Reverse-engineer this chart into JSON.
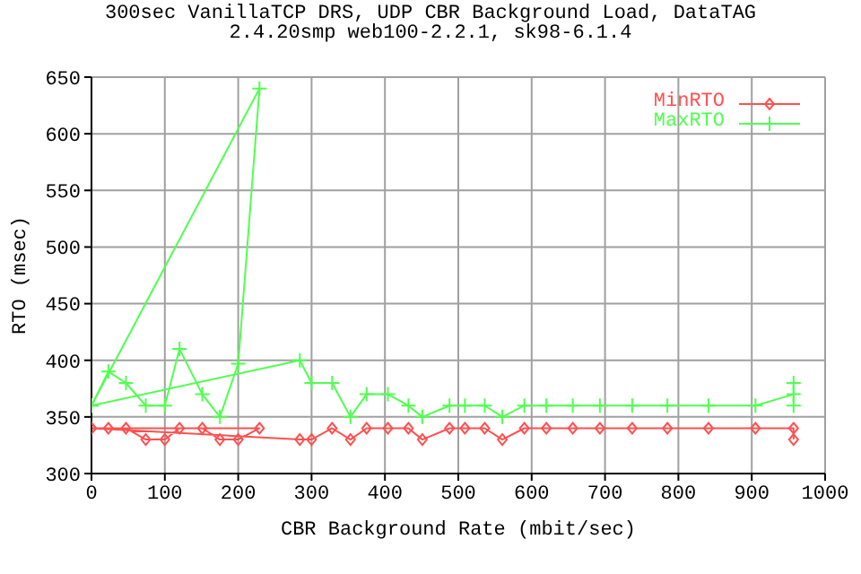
{
  "chart_data": {
    "type": "line",
    "title": "300sec VanillaTCP DRS, UDP CBR Background Load, DataTAG",
    "subtitle": "2.4.20smp web100-2.2.1, sk98-6.1.4",
    "xlabel": "CBR Background Rate (mbit/sec)",
    "ylabel": "RTO (msec)",
    "xlim": [
      0,
      1000
    ],
    "ylim": [
      300,
      650
    ],
    "xticks": [
      0,
      100,
      200,
      300,
      400,
      500,
      600,
      700,
      800,
      900,
      1000
    ],
    "yticks": [
      300,
      350,
      400,
      450,
      500,
      550,
      600,
      650
    ],
    "grid": true,
    "legend": "top right",
    "series": [
      {
        "name": "MinRTO",
        "color": "#ff5050",
        "marker": "diamond",
        "x": [
          0,
          23,
          47,
          74,
          100,
          120,
          151,
          175,
          200,
          229,
          0,
          284,
          300,
          328,
          353,
          375,
          404,
          432,
          451,
          488,
          509,
          536,
          560,
          590,
          620,
          656,
          693,
          737,
          785,
          841,
          905,
          957,
          957
        ],
        "values": [
          340,
          340,
          340,
          330,
          330,
          340,
          340,
          330,
          330,
          340,
          340,
          330,
          330,
          340,
          330,
          340,
          340,
          340,
          330,
          340,
          340,
          340,
          330,
          340,
          340,
          340,
          340,
          340,
          340,
          340,
          340,
          340,
          330
        ]
      },
      {
        "name": "MaxRTO",
        "color": "#50ff50",
        "marker": "cross",
        "x": [
          0,
          23,
          47,
          74,
          100,
          120,
          151,
          175,
          200,
          229,
          0,
          284,
          300,
          328,
          353,
          375,
          404,
          432,
          451,
          488,
          509,
          536,
          560,
          590,
          620,
          656,
          693,
          737,
          785,
          841,
          905,
          957,
          957,
          957
        ],
        "values": [
          360,
          390,
          380,
          360,
          360,
          410,
          370,
          350,
          397,
          640,
          360,
          400,
          380,
          380,
          350,
          370,
          370,
          360,
          350,
          360,
          360,
          360,
          350,
          360,
          360,
          360,
          360,
          360,
          360,
          360,
          360,
          370,
          380,
          360
        ]
      }
    ]
  }
}
